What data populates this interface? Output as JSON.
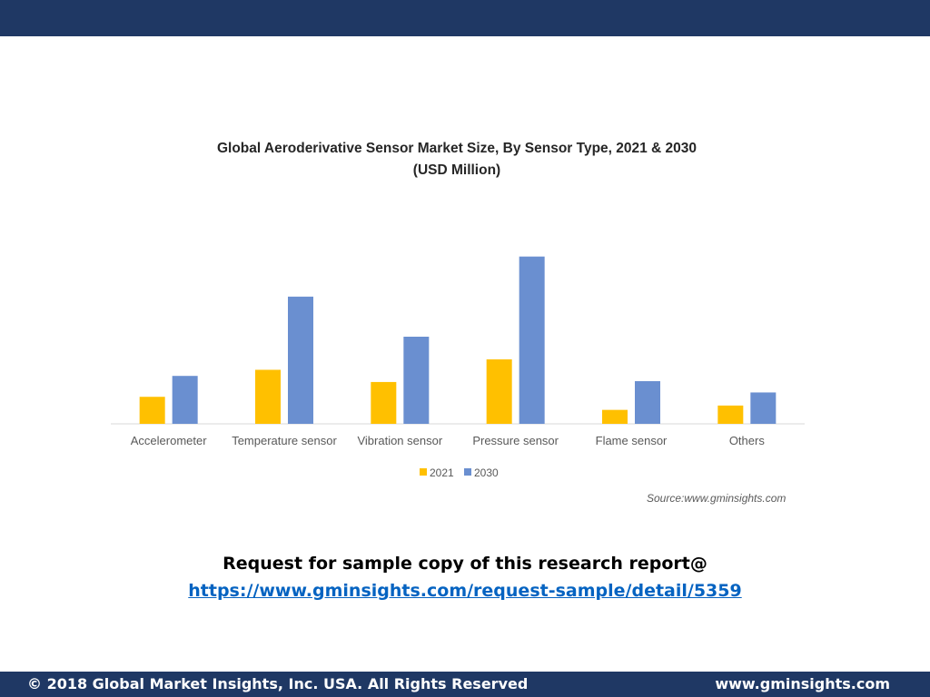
{
  "chart_data": {
    "type": "bar",
    "title": "Global Aeroderivative Sensor Market  Size, By Sensor Type, 2021 & 2030",
    "subtitle": "(USD Million)",
    "xlabel": "",
    "ylabel": "",
    "categories": [
      "Accelerometer",
      "Temperature sensor",
      "Vibration sensor",
      "Pressure sensor",
      "Flame sensor",
      "Others"
    ],
    "series": [
      {
        "name": "2021",
        "color": "#ffc000",
        "values": [
          31,
          62,
          48,
          74,
          16,
          21
        ]
      },
      {
        "name": "2030",
        "color": "#6a8fd0",
        "values": [
          55,
          146,
          100,
          192,
          49,
          36
        ]
      }
    ],
    "ylim": [
      0,
      200
    ],
    "grid": false,
    "legend_position": "bottom",
    "source": "Source:www.gminsights.com"
  },
  "request": {
    "text": "Request for sample copy of this research report@",
    "link": "https://www.gminsights.com/request-sample/detail/5359"
  },
  "footer": {
    "copyright": "© 2018 Global Market Insights, Inc. USA. All Rights Reserved",
    "website": "www.gminsights.com"
  },
  "colors": {
    "header_bar": "#1f3864",
    "footer_bar": "#1f3864",
    "link": "#0563c1"
  }
}
